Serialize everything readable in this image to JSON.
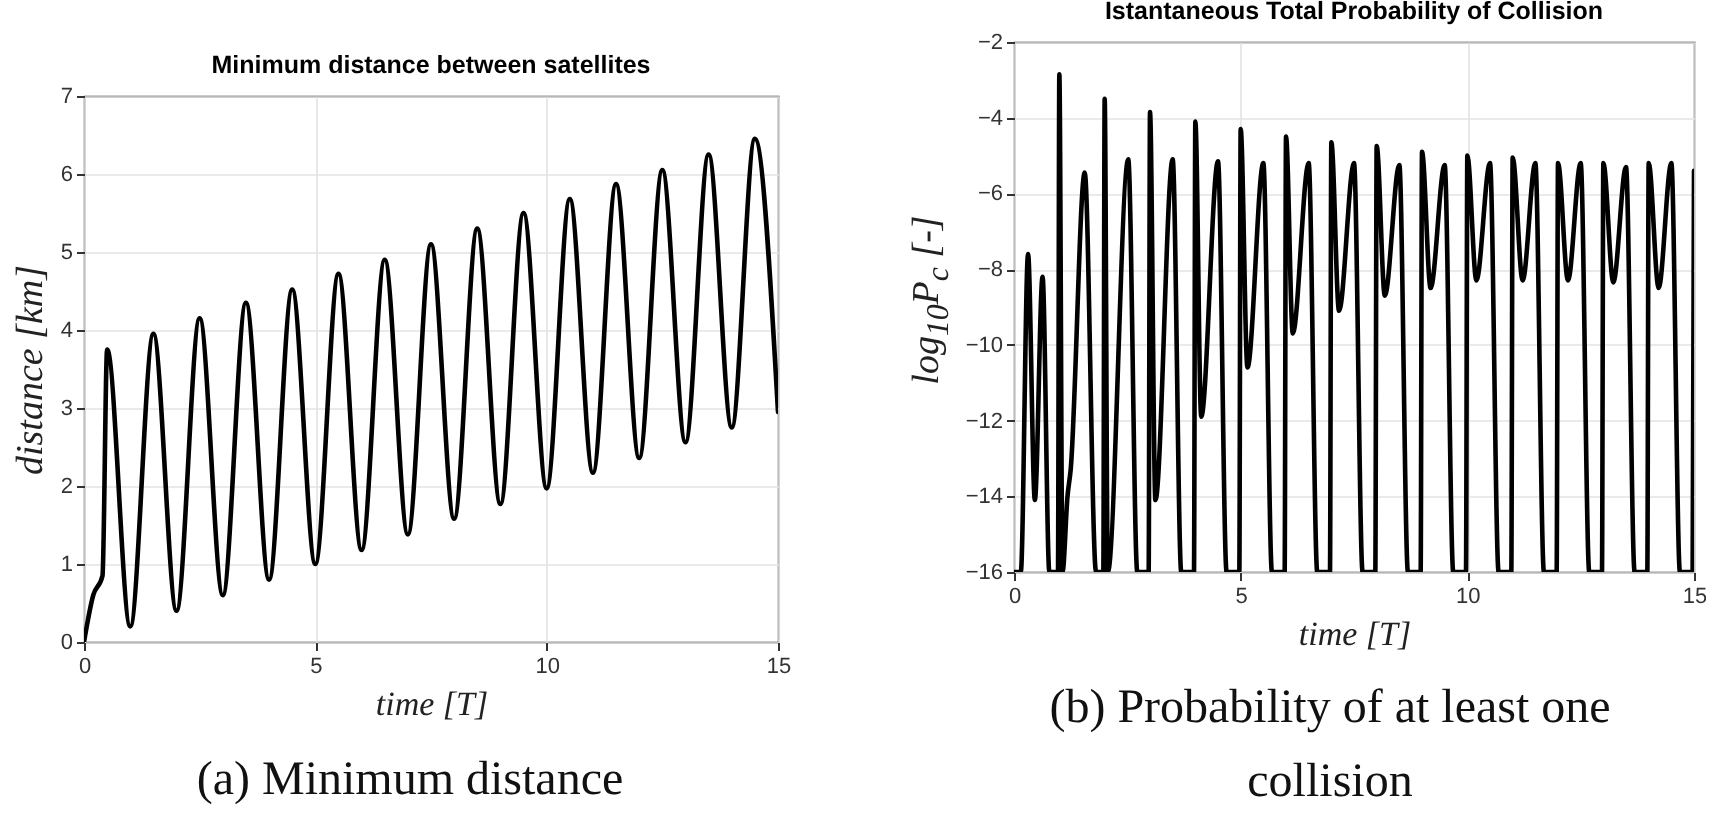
{
  "chart_data": [
    {
      "type": "line",
      "title": "Minimum distance between satellites",
      "xlabel": "time [T]",
      "ylabel": "distance [km]",
      "annotations": [
        "(a) Minimum distance"
      ],
      "x": [
        0,
        0.2,
        0.4,
        0.5,
        1,
        1.5,
        2,
        2.5,
        3,
        3.5,
        4,
        4.5,
        5,
        5.5,
        6,
        6.5,
        7,
        7.5,
        8,
        8.5,
        9,
        9.5,
        10,
        10.5,
        11,
        11.5,
        12,
        12.5,
        13,
        13.5,
        14,
        14.5,
        15
      ],
      "series": [
        {
          "color": "#000000",
          "values": [
            0,
            0.6,
            0.85,
            3.75,
            0.2,
            3.95,
            0.4,
            4.15,
            0.6,
            4.35,
            0.8,
            4.52,
            1.0,
            4.72,
            1.18,
            4.9,
            1.38,
            5.1,
            1.58,
            5.3,
            1.77,
            5.5,
            1.97,
            5.68,
            2.17,
            5.87,
            2.36,
            6.05,
            2.56,
            6.25,
            2.75,
            6.45,
            2.95
          ]
        }
      ],
      "xlim": [
        0,
        15
      ],
      "xticks": [
        0,
        5,
        10,
        15
      ],
      "ylim": [
        0,
        7
      ],
      "yticks": [
        0,
        1,
        2,
        3,
        4,
        5,
        6,
        7
      ],
      "grid": true
    },
    {
      "type": "line",
      "title": "Istantaneous Total Probability of Collision",
      "xlabel": "time [T]",
      "ylabel": "log$_{10}$P$_{c}$ [-]",
      "annotations": [
        "(b) Probability of at least one collision"
      ],
      "x": [
        0,
        0.15,
        0.31,
        0.46,
        0.63,
        0.78,
        0.97,
        1.0,
        1.07,
        1.18,
        1.25,
        1.56,
        1.81,
        1.97,
        2.0,
        2.07,
        2.52,
        2.72,
        2.97,
        3,
        3.12,
        3.5,
        3.69,
        3.97,
        4,
        4.13,
        4.5,
        4.69,
        4.97,
        5,
        5.15,
        5.5,
        5.69,
        5.97,
        6,
        6.15,
        6.5,
        6.69,
        6.97,
        7,
        7.17,
        7.5,
        7.69,
        7.97,
        8,
        8.18,
        8.5,
        8.69,
        8.97,
        9,
        9.19,
        9.5,
        9.69,
        9.97,
        10,
        10.2,
        10.5,
        10.69,
        10.97,
        11,
        11.22,
        11.5,
        11.69,
        11.97,
        12,
        12.22,
        12.5,
        12.69,
        12.97,
        13,
        13.22,
        13.5,
        13.69,
        13.97,
        14,
        14.22,
        14.5,
        14.69,
        14.97,
        15
      ],
      "series": [
        {
          "color": "#000000",
          "values": [
            -16,
            -16,
            -7.6,
            -14.1,
            -8.2,
            -16,
            -16,
            -2.85,
            -16,
            -14,
            -13.3,
            -5.45,
            -16,
            -16,
            -3.5,
            -16,
            -5.1,
            -16,
            -16,
            -3.85,
            -14.1,
            -5.1,
            -16,
            -16,
            -4.1,
            -11.9,
            -5.15,
            -16,
            -16,
            -4.3,
            -10.6,
            -5.2,
            -16,
            -16,
            -4.5,
            -9.7,
            -5.2,
            -16,
            -16,
            -4.65,
            -9.1,
            -5.2,
            -16,
            -16,
            -4.75,
            -8.7,
            -5.25,
            -16,
            -16,
            -4.9,
            -8.5,
            -5.25,
            -16,
            -16,
            -5.0,
            -8.3,
            -5.2,
            -16,
            -16,
            -5.05,
            -8.3,
            -5.2,
            -16,
            -16,
            -5.2,
            -8.3,
            -5.2,
            -16,
            -16,
            -5.2,
            -8.35,
            -5.3,
            -16,
            -16,
            -5.2,
            -8.5,
            -5.2,
            -16,
            -16,
            -5.4
          ]
        }
      ],
      "xlim": [
        0,
        15
      ],
      "xticks": [
        0,
        5,
        10,
        15
      ],
      "ylim": [
        -16,
        -2
      ],
      "yticks": [
        -16,
        -14,
        -12,
        -10,
        -8,
        -6,
        -4,
        -2
      ],
      "grid": true
    }
  ]
}
